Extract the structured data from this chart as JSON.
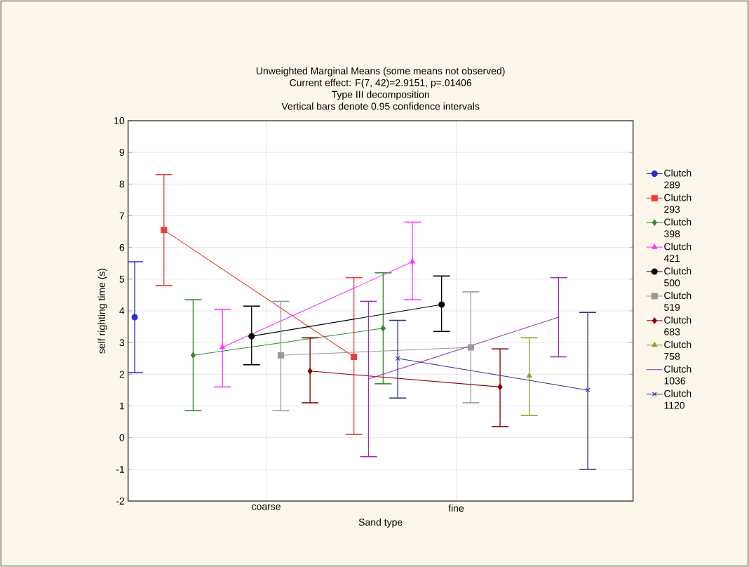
{
  "chart_data": {
    "type": "line",
    "title": "Unweighted Marginal Means (some means not observed)",
    "subtitle": "Current effect: F(7, 42)=2.9151, p=.01406",
    "annotations": [
      "Type III decomposition",
      "Vertical bars denote 0.95 confidence intervals"
    ],
    "xlabel": "Sand type",
    "ylabel": "self righting time (s)",
    "categories": [
      null,
      null,
      null,
      null,
      null,
      null,
      null,
      null,
      null,
      "coarse",
      null,
      null,
      null,
      null,
      null,
      null,
      null,
      null,
      null,
      null,
      null,
      null,
      "fine",
      null,
      null,
      null,
      null,
      null,
      null,
      null,
      null,
      null
    ],
    "ylim": [
      -2,
      10
    ],
    "yticks": [
      -2,
      -1,
      0,
      1,
      2,
      3,
      4,
      5,
      6,
      7,
      8,
      9,
      10
    ],
    "grid": true,
    "legend": "right",
    "series": [
      {
        "name": "Clutch 289",
        "color": "#2b2bcc",
        "marker": "circle",
        "values": [
          3.8,
          null,
          null,
          null,
          null,
          null,
          null,
          null,
          null,
          null,
          null,
          null,
          null,
          null,
          null,
          null,
          null,
          null,
          null,
          null,
          null,
          null,
          null,
          null,
          null,
          null,
          null,
          null,
          null,
          null,
          null,
          null
        ],
        "errors": [
          [
            2.05,
            5.55
          ],
          null,
          null,
          null,
          null,
          null,
          null,
          null,
          null,
          null,
          null,
          null,
          null,
          null,
          null,
          null,
          null,
          null,
          null,
          null,
          null,
          null,
          null,
          null,
          null,
          null,
          null,
          null,
          null,
          null,
          null,
          null
        ]
      },
      {
        "name": "Clutch 293",
        "color": "#e8403a",
        "marker": "square",
        "values": [
          null,
          null,
          6.55,
          null,
          null,
          null,
          null,
          null,
          null,
          null,
          null,
          null,
          null,
          null,
          null,
          2.55,
          null,
          null,
          null,
          null,
          null,
          null,
          null,
          null,
          null,
          null,
          null,
          null,
          null,
          null,
          null,
          null
        ],
        "errors": [
          null,
          null,
          [
            4.8,
            8.3
          ],
          null,
          null,
          null,
          null,
          null,
          null,
          null,
          null,
          null,
          null,
          null,
          null,
          [
            0.1,
            5.05
          ],
          null,
          null,
          null,
          null,
          null,
          null,
          null,
          null,
          null,
          null,
          null,
          null,
          null,
          null,
          null,
          null
        ]
      },
      {
        "name": "Clutch 398",
        "color": "#2e8b2e",
        "marker": "diamond",
        "values": [
          null,
          null,
          null,
          null,
          2.6,
          null,
          null,
          null,
          null,
          null,
          null,
          null,
          null,
          null,
          null,
          null,
          null,
          3.45,
          null,
          null,
          null,
          null,
          null,
          null,
          null,
          null,
          null,
          null,
          null,
          null,
          null,
          null
        ],
        "errors": [
          null,
          null,
          null,
          null,
          [
            0.85,
            4.35
          ],
          null,
          null,
          null,
          null,
          null,
          null,
          null,
          null,
          null,
          null,
          null,
          null,
          [
            1.7,
            5.2
          ],
          null,
          null,
          null,
          null,
          null,
          null,
          null,
          null,
          null,
          null,
          null,
          null,
          null,
          null
        ]
      },
      {
        "name": "Clutch 421",
        "color": "#ff33ff",
        "marker": "triangle",
        "values": [
          null,
          null,
          null,
          null,
          null,
          null,
          2.85,
          null,
          null,
          null,
          null,
          null,
          null,
          null,
          null,
          null,
          null,
          null,
          null,
          5.55,
          null,
          null,
          null,
          null,
          null,
          null,
          null,
          null,
          null,
          null,
          null,
          null
        ],
        "errors": [
          null,
          null,
          null,
          null,
          null,
          null,
          [
            1.6,
            4.05
          ],
          null,
          null,
          null,
          null,
          null,
          null,
          null,
          null,
          null,
          null,
          null,
          null,
          [
            4.35,
            6.8
          ],
          null,
          null,
          null,
          null,
          null,
          null,
          null,
          null,
          null,
          null,
          null,
          null
        ]
      },
      {
        "name": "Clutch 500",
        "color": "#000000",
        "marker": "circle",
        "values": [
          null,
          null,
          null,
          null,
          null,
          null,
          null,
          null,
          3.2,
          null,
          null,
          null,
          null,
          null,
          null,
          null,
          null,
          null,
          null,
          null,
          null,
          4.2,
          null,
          null,
          null,
          null,
          null,
          null,
          null,
          null,
          null,
          null
        ],
        "errors": [
          null,
          null,
          null,
          null,
          null,
          null,
          null,
          null,
          [
            2.3,
            4.15
          ],
          null,
          null,
          null,
          null,
          null,
          null,
          null,
          null,
          null,
          null,
          null,
          null,
          [
            3.35,
            5.1
          ],
          null,
          null,
          null,
          null,
          null,
          null,
          null,
          null,
          null,
          null
        ]
      },
      {
        "name": "Clutch 519",
        "color": "#999999",
        "marker": "square",
        "values": [
          null,
          null,
          null,
          null,
          null,
          null,
          null,
          null,
          null,
          null,
          2.6,
          null,
          null,
          null,
          null,
          null,
          null,
          null,
          null,
          null,
          null,
          null,
          null,
          2.85,
          null,
          null,
          null,
          null,
          null,
          null,
          null,
          null
        ],
        "errors": [
          null,
          null,
          null,
          null,
          null,
          null,
          null,
          null,
          null,
          null,
          [
            0.85,
            4.3
          ],
          null,
          null,
          null,
          null,
          null,
          null,
          null,
          null,
          null,
          null,
          null,
          null,
          [
            1.1,
            4.6
          ],
          null,
          null,
          null,
          null,
          null,
          null,
          null,
          null
        ]
      },
      {
        "name": "Clutch 683",
        "color": "#8b0000",
        "marker": "diamond",
        "values": [
          null,
          null,
          null,
          null,
          null,
          null,
          null,
          null,
          null,
          null,
          null,
          null,
          2.1,
          null,
          null,
          null,
          null,
          null,
          null,
          null,
          null,
          null,
          null,
          null,
          null,
          1.6,
          null,
          null,
          null,
          null,
          null,
          null
        ],
        "errors": [
          null,
          null,
          null,
          null,
          null,
          null,
          null,
          null,
          null,
          null,
          null,
          null,
          [
            1.1,
            3.15
          ],
          null,
          null,
          null,
          null,
          null,
          null,
          null,
          null,
          null,
          null,
          null,
          null,
          [
            0.35,
            2.8
          ],
          null,
          null,
          null,
          null,
          null,
          null
        ]
      },
      {
        "name": "Clutch 758",
        "color": "#999933",
        "marker": "triangle",
        "values": [
          null,
          null,
          null,
          null,
          null,
          null,
          null,
          null,
          null,
          null,
          null,
          null,
          null,
          null,
          null,
          null,
          null,
          null,
          null,
          null,
          null,
          null,
          null,
          null,
          null,
          null,
          null,
          1.95,
          null,
          null,
          null,
          null
        ],
        "errors": [
          null,
          null,
          null,
          null,
          null,
          null,
          null,
          null,
          null,
          null,
          null,
          null,
          null,
          null,
          null,
          null,
          null,
          null,
          null,
          null,
          null,
          null,
          null,
          null,
          null,
          null,
          null,
          [
            0.7,
            3.15
          ],
          null,
          null,
          null,
          null
        ]
      },
      {
        "name": "Clutch 1036",
        "color": "#9933aa",
        "marker": "none",
        "values": [
          null,
          null,
          null,
          null,
          null,
          null,
          null,
          null,
          null,
          null,
          null,
          null,
          null,
          null,
          null,
          null,
          1.85,
          null,
          null,
          null,
          null,
          null,
          null,
          null,
          null,
          null,
          null,
          null,
          null,
          3.8,
          null,
          null
        ],
        "errors": [
          null,
          null,
          null,
          null,
          null,
          null,
          null,
          null,
          null,
          null,
          null,
          null,
          null,
          null,
          null,
          null,
          [
            -0.6,
            4.3
          ],
          null,
          null,
          null,
          null,
          null,
          null,
          null,
          null,
          null,
          null,
          null,
          null,
          [
            2.55,
            5.05
          ],
          null,
          null
        ]
      },
      {
        "name": "Clutch 1120",
        "color": "#33338b",
        "marker": "cross",
        "values": [
          null,
          null,
          null,
          null,
          null,
          null,
          null,
          null,
          null,
          null,
          null,
          null,
          null,
          null,
          null,
          null,
          null,
          null,
          2.5,
          null,
          null,
          null,
          null,
          null,
          null,
          null,
          null,
          null,
          null,
          null,
          null,
          1.5
        ],
        "errors": [
          null,
          null,
          null,
          null,
          null,
          null,
          null,
          null,
          null,
          null,
          null,
          null,
          null,
          null,
          null,
          null,
          null,
          null,
          [
            1.25,
            3.7
          ],
          null,
          null,
          null,
          null,
          null,
          null,
          null,
          null,
          null,
          null,
          null,
          null,
          [
            -1.0,
            3.95
          ]
        ]
      }
    ]
  }
}
